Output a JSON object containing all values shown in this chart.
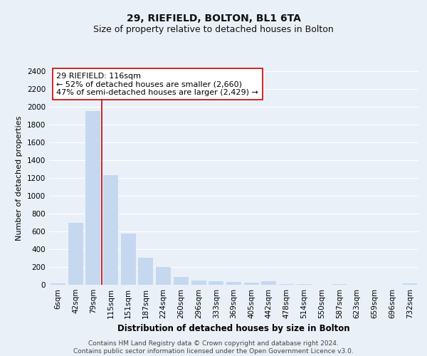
{
  "title": "29, RIEFIELD, BOLTON, BL1 6TA",
  "subtitle": "Size of property relative to detached houses in Bolton",
  "xlabel": "Distribution of detached houses by size in Bolton",
  "ylabel": "Number of detached properties",
  "categories": [
    "6sqm",
    "42sqm",
    "79sqm",
    "115sqm",
    "151sqm",
    "187sqm",
    "224sqm",
    "260sqm",
    "296sqm",
    "333sqm",
    "369sqm",
    "405sqm",
    "442sqm",
    "478sqm",
    "514sqm",
    "550sqm",
    "587sqm",
    "623sqm",
    "659sqm",
    "696sqm",
    "732sqm"
  ],
  "values": [
    15,
    700,
    1950,
    1230,
    575,
    305,
    200,
    85,
    45,
    38,
    32,
    28,
    38,
    10,
    12,
    3,
    12,
    3,
    3,
    3,
    15
  ],
  "bar_color": "#c5d8f0",
  "bar_edge_color": "none",
  "vline_index": 3,
  "vline_color": "#cc0000",
  "vline_linewidth": 1.2,
  "annotation_text": "29 RIEFIELD: 116sqm\n← 52% of detached houses are smaller (2,660)\n47% of semi-detached houses are larger (2,429) →",
  "annotation_box_facecolor": "#ffffff",
  "annotation_box_edgecolor": "#cc0000",
  "ylim": [
    0,
    2400
  ],
  "yticks": [
    0,
    200,
    400,
    600,
    800,
    1000,
    1200,
    1400,
    1600,
    1800,
    2000,
    2200,
    2400
  ],
  "background_color": "#eaf0f8",
  "plot_bg_color": "#eaf0f8",
  "grid_color": "#ffffff",
  "footer_text": "Contains HM Land Registry data © Crown copyright and database right 2024.\nContains public sector information licensed under the Open Government Licence v3.0.",
  "title_fontsize": 10,
  "subtitle_fontsize": 9,
  "xlabel_fontsize": 8.5,
  "ylabel_fontsize": 8,
  "tick_fontsize": 7.5,
  "annotation_fontsize": 8,
  "footer_fontsize": 6.5
}
